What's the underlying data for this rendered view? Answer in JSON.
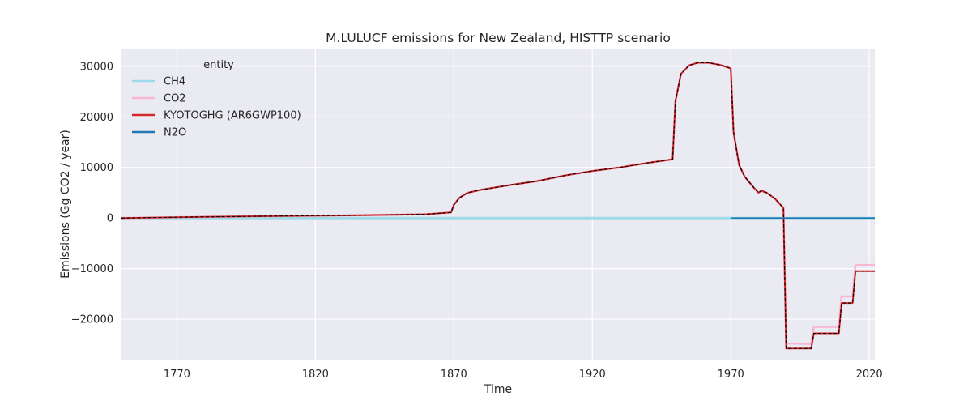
{
  "chart_data": {
    "type": "line",
    "title": "M.LULUCF emissions for New Zealand, HISTTP scenario",
    "xlabel": "Time",
    "ylabel": "Emissions (Gg CO2 / year)",
    "xlim": [
      1750,
      2022
    ],
    "ylim": [
      -28000,
      33500
    ],
    "xticks": [
      1770,
      1820,
      1870,
      1920,
      1970,
      2020
    ],
    "yticks": [
      -20000,
      -10000,
      0,
      10000,
      20000,
      30000
    ],
    "ytick_labels": [
      "−20000",
      "−10000",
      "0",
      "10000",
      "20000",
      "30000"
    ],
    "grid": true,
    "legend": {
      "title": "entity",
      "position": "top-left"
    },
    "series": [
      {
        "name": "CH4",
        "color": "#9edae5",
        "style": "solid",
        "points": [
          [
            1750,
            0
          ],
          [
            2022,
            0
          ]
        ]
      },
      {
        "name": "CO2",
        "color": "#f7b6d2",
        "style": "solid",
        "points": [
          [
            1750,
            0
          ],
          [
            1770,
            150
          ],
          [
            1800,
            350
          ],
          [
            1830,
            500
          ],
          [
            1850,
            650
          ],
          [
            1860,
            750
          ],
          [
            1869,
            1100
          ],
          [
            1870,
            2600
          ],
          [
            1872,
            4000
          ],
          [
            1875,
            5000
          ],
          [
            1880,
            5600
          ],
          [
            1890,
            6500
          ],
          [
            1900,
            7300
          ],
          [
            1910,
            8400
          ],
          [
            1920,
            9300
          ],
          [
            1930,
            10000
          ],
          [
            1940,
            10900
          ],
          [
            1949,
            11600
          ],
          [
            1950,
            23000
          ],
          [
            1952,
            28500
          ],
          [
            1955,
            30200
          ],
          [
            1958,
            30700
          ],
          [
            1962,
            30700
          ],
          [
            1966,
            30300
          ],
          [
            1970,
            29600
          ],
          [
            1971,
            17000
          ],
          [
            1973,
            10500
          ],
          [
            1975,
            8200
          ],
          [
            1978,
            6200
          ],
          [
            1980,
            5000
          ],
          [
            1981,
            5400
          ],
          [
            1983,
            5000
          ],
          [
            1986,
            3800
          ],
          [
            1989,
            2000
          ],
          [
            1990,
            -24800
          ],
          [
            1999,
            -24900
          ],
          [
            2000,
            -21500
          ],
          [
            2009,
            -21500
          ],
          [
            2010,
            -15500
          ],
          [
            2014,
            -15500
          ],
          [
            2015,
            -9300
          ],
          [
            2022,
            -9300
          ]
        ]
      },
      {
        "name": "KYOTOGHG (AR6GWP100)",
        "color": "#d62728",
        "style": "solid",
        "points": [
          [
            1750,
            0
          ],
          [
            1770,
            150
          ],
          [
            1800,
            350
          ],
          [
            1830,
            500
          ],
          [
            1850,
            650
          ],
          [
            1860,
            750
          ],
          [
            1869,
            1100
          ],
          [
            1870,
            2600
          ],
          [
            1872,
            4000
          ],
          [
            1875,
            5000
          ],
          [
            1880,
            5600
          ],
          [
            1890,
            6500
          ],
          [
            1900,
            7300
          ],
          [
            1910,
            8400
          ],
          [
            1920,
            9300
          ],
          [
            1930,
            10000
          ],
          [
            1940,
            10900
          ],
          [
            1949,
            11600
          ],
          [
            1950,
            23000
          ],
          [
            1952,
            28500
          ],
          [
            1955,
            30200
          ],
          [
            1958,
            30700
          ],
          [
            1962,
            30700
          ],
          [
            1966,
            30300
          ],
          [
            1970,
            29600
          ],
          [
            1971,
            17000
          ],
          [
            1973,
            10500
          ],
          [
            1975,
            8200
          ],
          [
            1978,
            6200
          ],
          [
            1980,
            5000
          ],
          [
            1981,
            5400
          ],
          [
            1983,
            5000
          ],
          [
            1986,
            3800
          ],
          [
            1989,
            2000
          ],
          [
            1990,
            -25800
          ],
          [
            1999,
            -25800
          ],
          [
            2000,
            -22800
          ],
          [
            2009,
            -22800
          ],
          [
            2010,
            -16800
          ],
          [
            2014,
            -16800
          ],
          [
            2015,
            -10500
          ],
          [
            2022,
            -10500
          ]
        ]
      },
      {
        "name": "N2O",
        "color": "#1f77b4",
        "style": "solid",
        "points": [
          [
            1970,
            0
          ],
          [
            2022,
            0
          ]
        ]
      }
    ],
    "reference_line": {
      "color": "#000000",
      "style": "dashed",
      "points": [
        [
          1750,
          0
        ],
        [
          1770,
          150
        ],
        [
          1800,
          350
        ],
        [
          1830,
          500
        ],
        [
          1850,
          650
        ],
        [
          1860,
          750
        ],
        [
          1869,
          1100
        ],
        [
          1870,
          2600
        ],
        [
          1872,
          4000
        ],
        [
          1875,
          5000
        ],
        [
          1880,
          5600
        ],
        [
          1890,
          6500
        ],
        [
          1900,
          7300
        ],
        [
          1910,
          8400
        ],
        [
          1920,
          9300
        ],
        [
          1930,
          10000
        ],
        [
          1940,
          10900
        ],
        [
          1949,
          11600
        ],
        [
          1950,
          23000
        ],
        [
          1952,
          28500
        ],
        [
          1955,
          30200
        ],
        [
          1958,
          30700
        ],
        [
          1962,
          30700
        ],
        [
          1966,
          30300
        ],
        [
          1970,
          29600
        ],
        [
          1971,
          17000
        ],
        [
          1973,
          10500
        ],
        [
          1975,
          8200
        ],
        [
          1978,
          6200
        ],
        [
          1980,
          5000
        ],
        [
          1981,
          5400
        ],
        [
          1983,
          5000
        ],
        [
          1986,
          3800
        ],
        [
          1989,
          2000
        ],
        [
          1990,
          -25800
        ],
        [
          1999,
          -25800
        ],
        [
          2000,
          -22800
        ],
        [
          2009,
          -22800
        ],
        [
          2010,
          -16800
        ],
        [
          2014,
          -16800
        ],
        [
          2015,
          -10500
        ],
        [
          2022,
          -10500
        ]
      ]
    }
  }
}
